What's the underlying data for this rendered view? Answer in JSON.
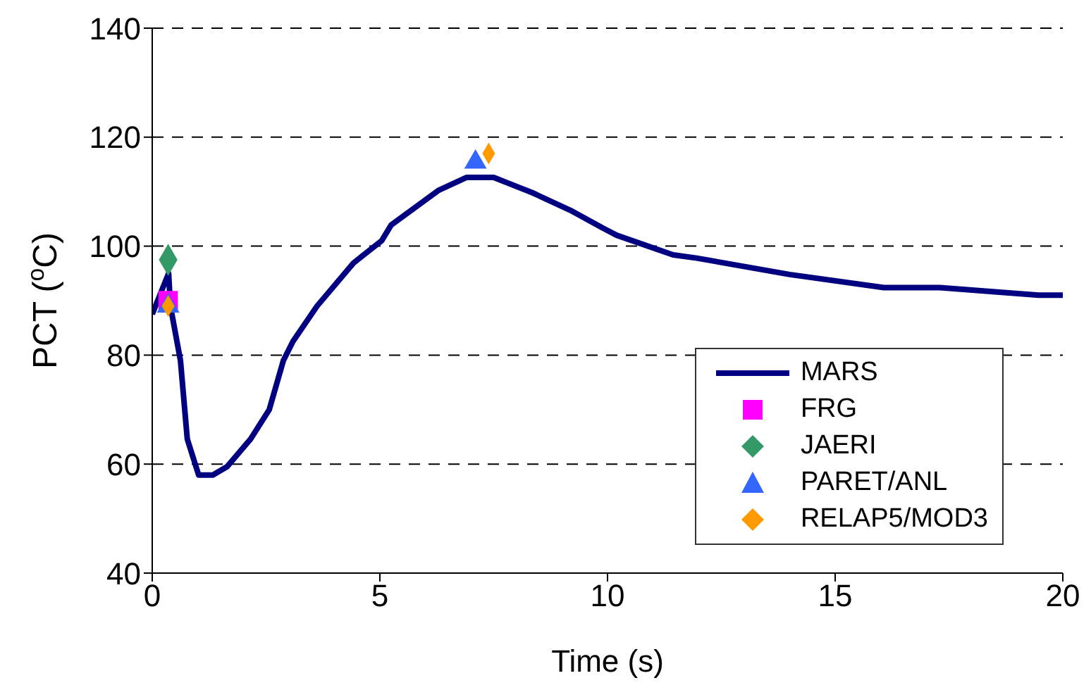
{
  "chart_data": {
    "type": "line",
    "xlabel": "Time (s)",
    "ylabel": "PCT ($^{o}$C)",
    "xlim": [
      0,
      20
    ],
    "xticks": [
      0,
      5,
      10,
      15,
      20
    ],
    "ylim": [
      40,
      140
    ],
    "yticks": [
      40,
      60,
      80,
      100,
      120,
      140
    ],
    "grid": "y",
    "legend": "bottom right",
    "series": [
      {
        "name": "MARS",
        "color": "#000080",
        "marker": "none",
        "line_style": "solid",
        "x": [
          0,
          0.36,
          0.4,
          0.62,
          0.77,
          1.02,
          1.33,
          1.64,
          2.16,
          2.57,
          2.88,
          3.09,
          3.62,
          4.42,
          5.04,
          5.25,
          6.28,
          6.9,
          7.5,
          8.35,
          9.18,
          9.9,
          10.2,
          11.44,
          11.96,
          14.0,
          16.07,
          17.3,
          19.47,
          20
        ],
        "values": [
          87.5,
          95,
          89,
          79,
          64.6,
          58,
          58,
          59.5,
          64.6,
          70,
          79,
          82.5,
          89,
          96.9,
          101,
          103.9,
          110.2,
          112.6,
          112.6,
          109.8,
          106.6,
          103.3,
          102,
          98.4,
          97.8,
          94.8,
          92.4,
          92.4,
          91,
          91
        ]
      },
      {
        "name": "FRG",
        "type": "scatter",
        "color": "#ff00ff",
        "marker": "square",
        "x": [
          0.35
        ],
        "values": [
          90
        ]
      },
      {
        "name": "JAERI",
        "type": "scatter",
        "color": "#339966",
        "marker": "diamond",
        "x": [
          0.35
        ],
        "values": [
          97.5
        ]
      },
      {
        "name": "PARET/ANL",
        "type": "scatter",
        "color": "#3366ff",
        "marker": "triangle",
        "x": [
          0.35,
          7.1
        ],
        "values": [
          89,
          115.4
        ]
      },
      {
        "name": "RELAP5/MOD3",
        "type": "scatter",
        "color": "#ff9900",
        "marker": "diamond",
        "x": [
          0.35,
          7.39
        ],
        "values": [
          89,
          117
        ]
      }
    ]
  }
}
